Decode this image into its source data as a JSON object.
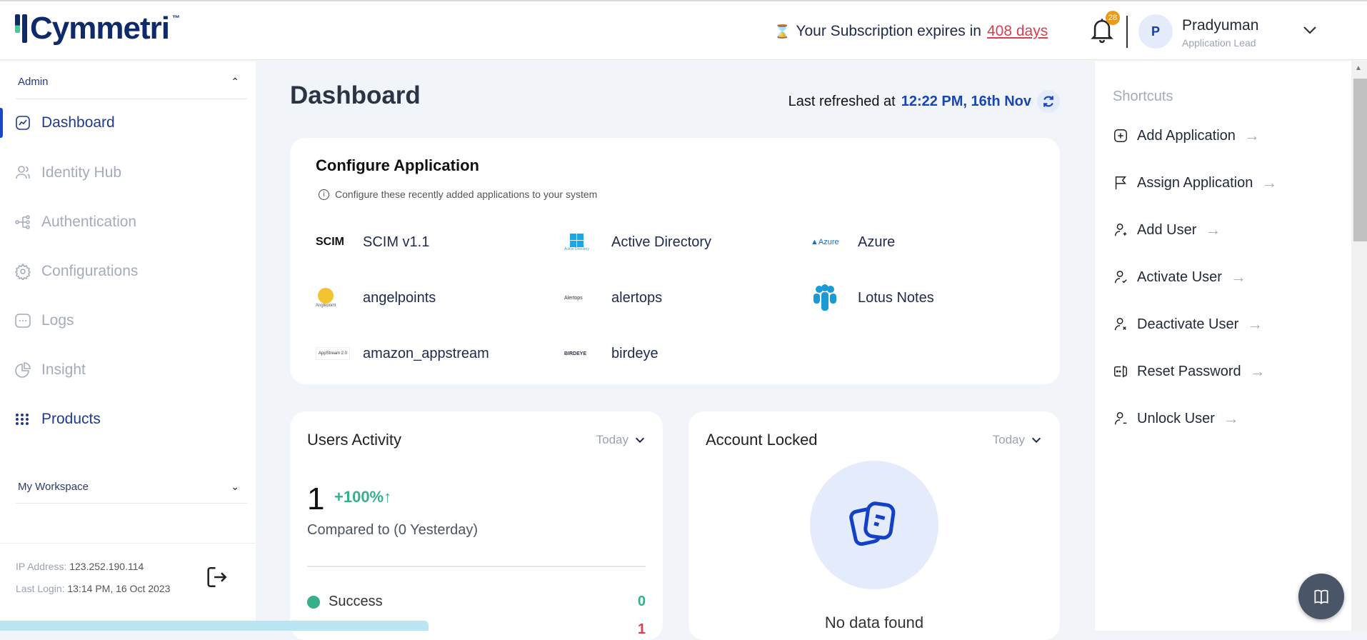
{
  "header": {
    "logo": "Cymmetri",
    "logo_tm": "™",
    "subscription_prefix": "Your Subscription expires in",
    "subscription_days": "408 days",
    "notification_count": "28",
    "user": {
      "initial": "P",
      "name": "Pradyuman",
      "role": "Application Lead"
    }
  },
  "sidebar": {
    "admin_label": "Admin",
    "items": [
      {
        "label": "Dashboard",
        "icon": "chart-line-icon",
        "active": true
      },
      {
        "label": "Identity Hub",
        "icon": "users-icon"
      },
      {
        "label": "Authentication",
        "icon": "flow-icon"
      },
      {
        "label": "Configurations",
        "icon": "gear-icon"
      },
      {
        "label": "Logs",
        "icon": "message-check-icon"
      },
      {
        "label": "Insight",
        "icon": "pie-icon"
      },
      {
        "label": "Products",
        "icon": "grid-dots-icon"
      }
    ],
    "workspace_label": "My Workspace",
    "ip_label": "IP Address:",
    "ip_value": "123.252.190.114",
    "login_label": "Last Login:",
    "login_value": "13:14 PM, 16 Oct 2023"
  },
  "main": {
    "title": "Dashboard",
    "refreshed_label": "Last refreshed at",
    "refreshed_time": "12:22 PM, 16th Nov",
    "configure": {
      "title": "Configure Application",
      "subtitle": "Configure these recently added applications to your system",
      "apps": [
        {
          "name": "SCIM v1.1",
          "logo": "SCIM"
        },
        {
          "name": "Active Directory",
          "logo": "Active Directory"
        },
        {
          "name": "Azure",
          "logo": "Azure"
        },
        {
          "name": "angelpoints",
          "logo": "Anglepoint"
        },
        {
          "name": "alertops",
          "logo": "Alertops"
        },
        {
          "name": "Lotus Notes",
          "logo": ""
        },
        {
          "name": "amazon_appstream",
          "logo": "AppStream 2.0"
        },
        {
          "name": "birdeye",
          "logo": "BIRDEYE"
        }
      ]
    },
    "users_activity": {
      "title": "Users Activity",
      "period": "Today",
      "count": "1",
      "change": "+100%",
      "compared": "Compared to (0 Yesterday)",
      "rows": [
        {
          "label": "Success",
          "value": "0",
          "color": "#36b08a"
        },
        {
          "label": "",
          "value": "1",
          "color": "#d9414f"
        }
      ]
    },
    "account_locked": {
      "title": "Account Locked",
      "period": "Today",
      "empty": "No data found"
    }
  },
  "shortcuts": {
    "title": "Shortcuts",
    "items": [
      {
        "label": "Add Application",
        "icon": "plus-square-icon"
      },
      {
        "label": "Assign Application",
        "icon": "flag-icon"
      },
      {
        "label": "Add User",
        "icon": "user-plus-icon"
      },
      {
        "label": "Activate User",
        "icon": "user-check-icon"
      },
      {
        "label": "Deactivate User",
        "icon": "user-x-icon"
      },
      {
        "label": "Reset Password",
        "icon": "password-icon"
      },
      {
        "label": "Unlock User",
        "icon": "user-unlock-icon"
      }
    ],
    "arrow": "→"
  },
  "colors": {
    "brand": "#0f2a6b",
    "accent": "#1a47c7",
    "success": "#36b08a",
    "danger": "#d9414f",
    "warning": "#e99b1c"
  }
}
